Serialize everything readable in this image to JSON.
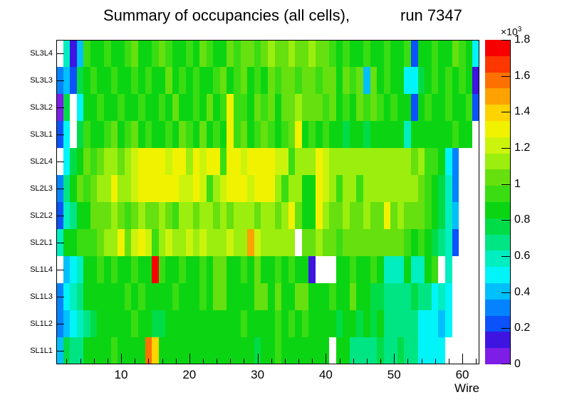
{
  "title": {
    "left": "Summary of occupancies (all cells),",
    "right": "run 7347"
  },
  "x_axis": {
    "label": "Wire",
    "major_tick_labels": [
      "10",
      "20",
      "30",
      "40",
      "50",
      "60"
    ],
    "major_tick_values": [
      10,
      20,
      30,
      40,
      50,
      60
    ],
    "minor_tick_step": 2,
    "min": 0.5,
    "max": 62.5
  },
  "y_axis": {
    "labels_top_to_bottom": [
      "SL3L4",
      "SL3L3",
      "SL3L2",
      "SL3L1",
      "SL2L4",
      "SL2L3",
      "SL2L2",
      "SL2L1",
      "SL1L4",
      "SL1L3",
      "SL1L2",
      "SL1L1"
    ]
  },
  "colorbar": {
    "multiplier": "×10",
    "exponent": "3",
    "tick_labels": [
      "0",
      "0.2",
      "0.4",
      "0.6",
      "0.8",
      "1",
      "1.2",
      "1.4",
      "1.6",
      "1.8"
    ],
    "tick_values": [
      0,
      200,
      400,
      600,
      800,
      1000,
      1200,
      1400,
      1600,
      1800
    ],
    "zmin": 0,
    "zmax": 1800
  },
  "chart_data": {
    "type": "heatmap",
    "title": "Summary of occupancies (all cells),      run 7347",
    "xlabel": "Wire",
    "x_range": [
      1,
      62
    ],
    "n_wires": 62,
    "z_range_counts": [
      0,
      1800
    ],
    "z_band_size_counts": 90,
    "palette_low_to_high": [
      "#7d1de6",
      "#3d14e0",
      "#0b52fb",
      "#0583fe",
      "#00c0fc",
      "#00f4f8",
      "#00eec0",
      "#00e584",
      "#00dc47",
      "#0bd512",
      "#39dd12",
      "#66e00e",
      "#9bee0e",
      "#ccf30c",
      "#f1f200",
      "#fdd300",
      "#fda200",
      "#fd7100",
      "#fc3800",
      "#f90000"
    ],
    "encoding": "one char per wire cell, wires 1-62 left to right; chars 0-9 and A-J map to palette band index 0-19 (cell value approx band_index*90 to (band_index+1)*90 counts); '.' means empty/white cell",
    "rows_top_to_bottom": [
      {
        "layer": "SL3L4",
        "cells": ".614A99A99AB99ABA99A9BA99BABBABCBBCBBCBBA9A99A99A99A299A99BA95"
      },
      {
        "layer": "SL3L3",
        "cells": "34289A99A99A9A99B9A9A99AB9AB9A9BABBABBABB9BAB4B9A995589A9A9A91"
      },
      {
        "layer": "SL3L2",
        "cells": "08.599A99A99A99A9B99A9B9AEAA9BAB9BBCBBBAB9A9BABA9A9929A99A99A2"
      },
      {
        "layer": "SL3L1",
        "cells": "25.8A99AB9AB9A99A9BA9B9A9EAB9ABA9ABE9A9A998998999996999999A99."
      },
      {
        "layer": "SL2L4",
        "cells": ".589BABCCBCDEEEEDEECEDEEAEEDEEEEDDACCCEDCCCCCCCCCCCCBCAA953..."
      },
      {
        "layer": "SL2L3",
        "cells": "379BABCCECCDEEEEEEDDEDACDEEEDEEECACC99EDCACCACCCCCCCCBA9863..."
      },
      {
        "layer": "SL2L2",
        "cells": "26799BBBCBABCBBCBACCBCCBCBCCCBCCBCEB99ECBBCBBCBBEBCBBBA9864..."
      },
      {
        "layer": "SL2L1",
        "cells": "699AAABCCEBDEDACDCCDCDCCCDCCGDCCCCC.BBCBBABBBBBBBBBA9A98762..."
      },
      {
        "layer": "SL1L4",
        "cells": ".45699A9A99A99JA99A99A9BB99A9B99A9A991...99A99A96669669A.6...."
      },
      {
        "layer": "SL1L3",
        "cells": "3567999999A9A9999A999A9BB9999BB9B99BB999A99B99887777877565...."
      },
      {
        "layer": "SL1L2",
        "cells": "34567899999A998899999999999A9999A9A9A999989989897777755545...."
      },
      {
        "layer": "SL1L1",
        "cells": "48779999A9999HF99999999999999899A9999999.9977778778775555....."
      }
    ],
    "notable_features": [
      "red cell (~1750 counts) at wire 15 in SL1L4",
      "orange cell (~1580) at wire 14 and yellow-gold at wire 15 in SL1L1",
      "orange cell (~1480) at wire 29 in SL2L1",
      "violet cell at wire 38 and white gap wires 39-41 in SL1L4",
      "white gap at wire 36 in SL2L1 and wire 41 in SL1L1",
      "blue columns at wire 53 in SL3L4/SL3L2",
      "SL2 layers generally hotter (yellow-green, ~1200-1400) than SL1/SL3 (~850-1100)",
      "wires 60-62 empty in SL2 layers, wires 58-62 empty in SL1 layers"
    ]
  }
}
